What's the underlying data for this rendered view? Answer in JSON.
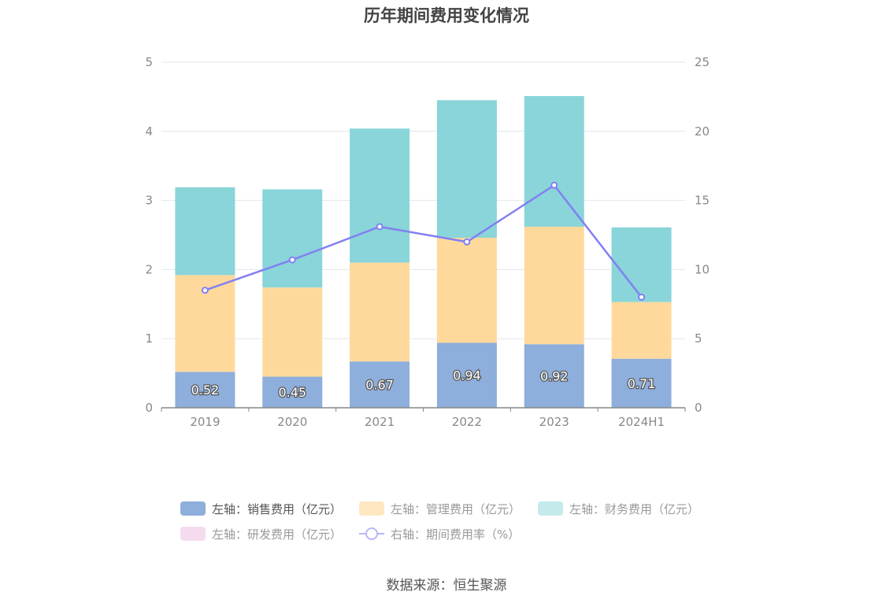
{
  "chart_data": {
    "type": "bar",
    "title": "历年期间费用变化情况",
    "categories": [
      "2019",
      "2020",
      "2021",
      "2022",
      "2023",
      "2024H1"
    ],
    "series": [
      {
        "name": "左轴：销售费用（亿元）",
        "axis": "left",
        "stack": true,
        "color": "#8eaedb",
        "values": [
          0.52,
          0.45,
          0.67,
          0.94,
          0.92,
          0.71
        ],
        "labels": [
          "0.52",
          "0.45",
          "0.67",
          "0.94",
          "0.92",
          "0.71"
        ]
      },
      {
        "name": "左轴：管理费用（亿元）",
        "axis": "left",
        "stack": true,
        "color": "#ffd99c",
        "values": [
          1.4,
          1.29,
          1.43,
          1.52,
          1.7,
          0.82
        ]
      },
      {
        "name": "左轴：财务费用（亿元）",
        "axis": "left",
        "stack": true,
        "color": "#89d5d9",
        "values": [
          1.27,
          1.42,
          1.94,
          1.99,
          1.89,
          1.08
        ]
      },
      {
        "name": "左轴：研发费用（亿元）",
        "axis": "left",
        "stack": true,
        "color": "#f0d2ea",
        "values": [
          0,
          0,
          0,
          0,
          0,
          0
        ]
      },
      {
        "name": "右轴：期间费用率（%）",
        "axis": "right",
        "type": "line",
        "color": "#8380f2",
        "values": [
          8.5,
          10.7,
          13.1,
          12.0,
          16.1,
          8.0
        ]
      }
    ],
    "left_axis": {
      "ylim": [
        0,
        5
      ],
      "ticks": [
        "0",
        "1",
        "2",
        "3",
        "4",
        "5"
      ]
    },
    "right_axis": {
      "ylim": [
        0,
        25
      ],
      "ticks": [
        "0",
        "5",
        "10",
        "15",
        "20",
        "25"
      ]
    },
    "grid": true,
    "legend_position": "bottom"
  },
  "legend": {
    "item1": "左轴：销售费用（亿元）",
    "item2": "左轴：管理费用（亿元）",
    "item3": "左轴：财务费用（亿元）",
    "item4": "左轴：研发费用（亿元）",
    "item5": "右轴：期间费用率（%）"
  },
  "colors": {
    "sales": "#8eaedb",
    "admin": "#ffe7c2",
    "finance": "#c4eaec",
    "rd": "#f4dcee"
  },
  "source": "数据来源：恒生聚源"
}
